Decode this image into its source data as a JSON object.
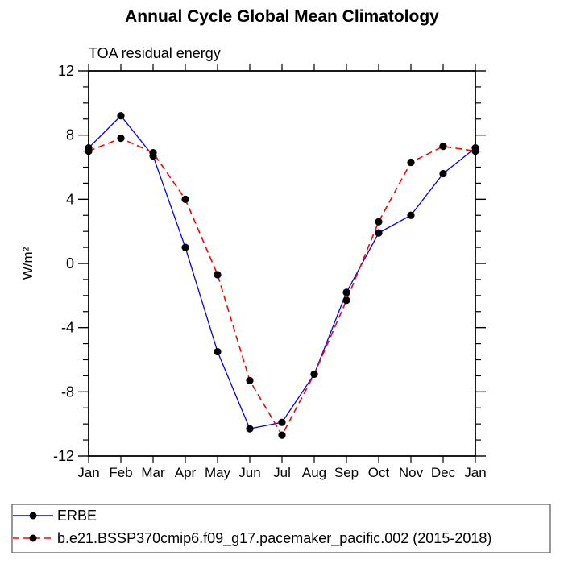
{
  "title": "Annual Cycle Global Mean Climatology",
  "chart_data": {
    "type": "line",
    "title": "Annual Cycle Global Mean Climatology",
    "subtitle": "TOA residual energy",
    "ylabel": "W/m²",
    "xlabel": "",
    "x_categories": [
      "Jan",
      "Feb",
      "Mar",
      "Apr",
      "May",
      "Jun",
      "Jul",
      "Aug",
      "Sep",
      "Oct",
      "Nov",
      "Dec",
      "Jan"
    ],
    "ylim": [
      -12,
      12
    ],
    "ytick_major_step": 4,
    "ytick_minor_step": 1,
    "ytick_major_labels": [
      "-12",
      "-8",
      "-4",
      "0",
      "4",
      "8",
      "12"
    ],
    "grid": "off",
    "legend_position": "bottom",
    "marker": "filled-circle",
    "marker_color": "#000000",
    "series": [
      {
        "name": "ERBE",
        "color": "#0000ff",
        "line_style": "solid",
        "values": [
          7.2,
          9.2,
          6.7,
          1.0,
          -5.5,
          -10.3,
          -9.9,
          -6.9,
          -1.8,
          1.9,
          3.0,
          5.6,
          7.2
        ]
      },
      {
        "name": "b.e21.BSSP370cmip6.f09_g17.pacemaker_pacific.002 (2015-2018)",
        "color": "#ff0000",
        "line_style": "dashed",
        "values": [
          7.0,
          7.8,
          6.9,
          4.0,
          -0.7,
          -7.3,
          -10.7,
          -6.9,
          -2.3,
          2.6,
          6.3,
          7.3,
          7.0
        ]
      }
    ]
  }
}
